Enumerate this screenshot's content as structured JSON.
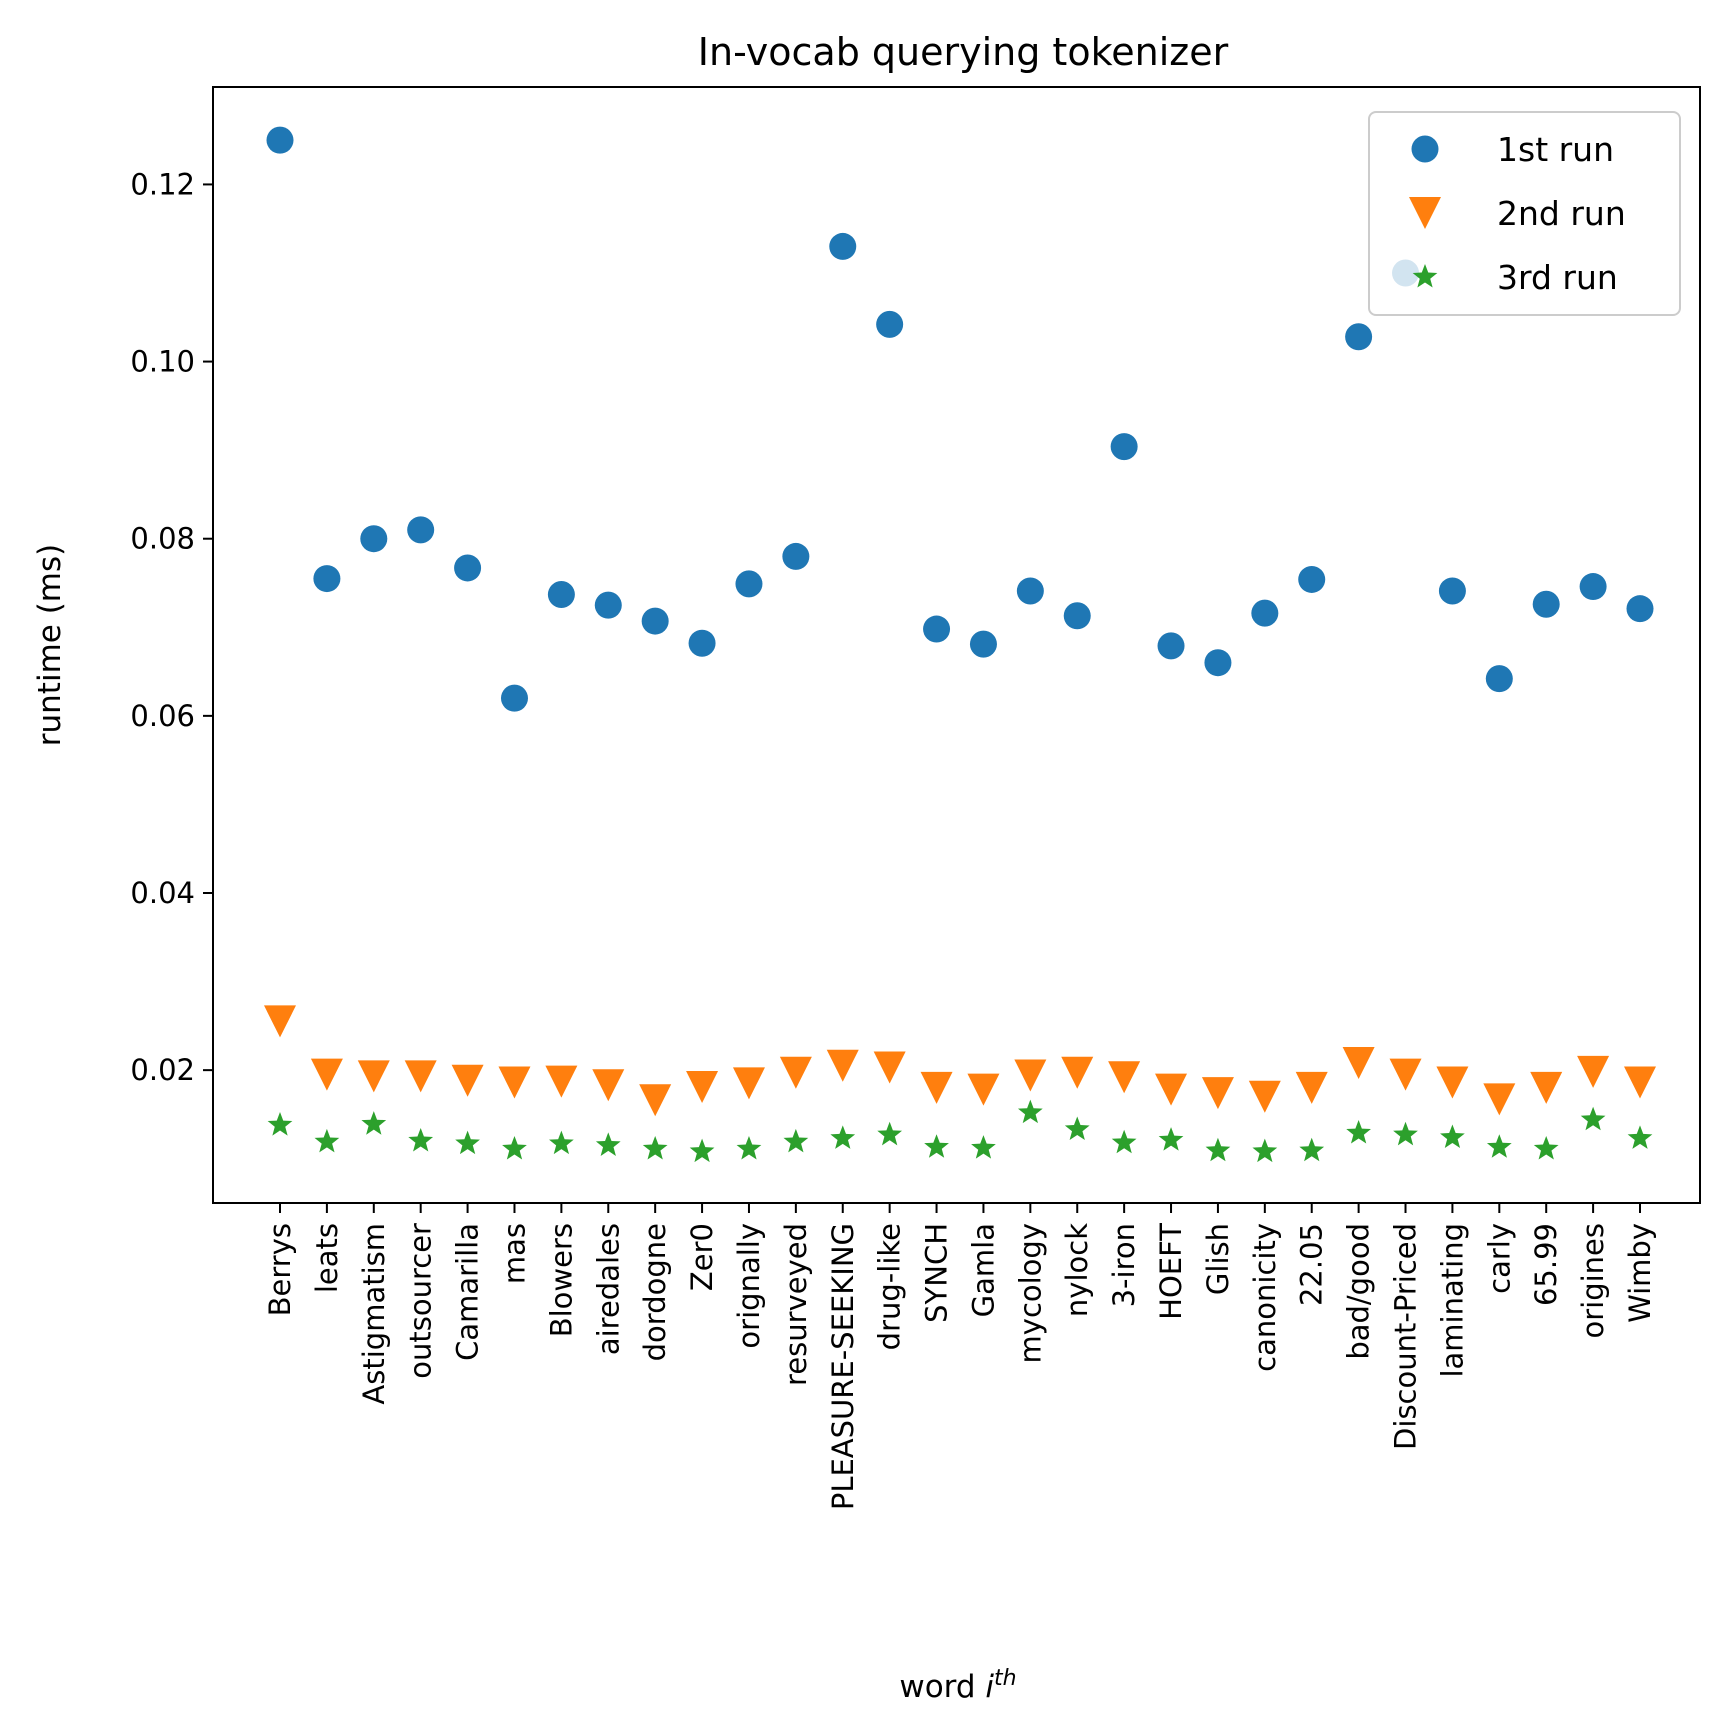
{
  "chart_data": {
    "type": "scatter",
    "title": "In-vocab querying tokenizer",
    "xlabel": "word",
    "xlabel_sup": "th",
    "xlabel_italic": "i",
    "ylabel": "runtime (ms)",
    "ylim": [
      0.005,
      0.131
    ],
    "yticks": [
      0.02,
      0.04,
      0.06,
      0.08,
      0.1,
      0.12
    ],
    "ytick_labels": [
      "0.02",
      "0.04",
      "0.06",
      "0.08",
      "0.10",
      "0.12"
    ],
    "grid": false,
    "legend_position": "top-right",
    "categories": [
      "Berrys",
      "leats",
      "Astigmatism",
      "outsourcer",
      "Camarilla",
      "mas",
      "Blowers",
      "airedales",
      "dordogne",
      "Zer0",
      "orignally",
      "resurveyed",
      "PLEASURE-SEEKING",
      "drug-like",
      "SYNCH",
      "Gamla",
      "mycology",
      "nylock",
      "3-iron",
      "HOEFT",
      "Glish",
      "canonicity",
      "22.05",
      "bad/good",
      "Discount-Priced",
      "laminating",
      "carly",
      "65.99",
      "origines",
      "Wimby"
    ],
    "series": [
      {
        "name": "1st run",
        "marker": "circle",
        "color": "#1f77b4",
        "values": [
          0.125,
          0.0755,
          0.08,
          0.081,
          0.0767,
          0.062,
          0.0737,
          0.0725,
          0.0707,
          0.0682,
          0.0749,
          0.078,
          0.113,
          0.1042,
          0.0698,
          0.0681,
          0.0741,
          0.0713,
          0.0904,
          0.0679,
          0.066,
          0.0716,
          0.0754,
          0.1028,
          0.11,
          0.0741,
          0.0642,
          0.0726,
          0.0746,
          0.0721
        ]
      },
      {
        "name": "2nd run",
        "marker": "triangle-down",
        "color": "#ff7f0e",
        "values": [
          0.0255,
          0.0195,
          0.0193,
          0.0193,
          0.0188,
          0.0186,
          0.0187,
          0.0183,
          0.0166,
          0.0181,
          0.0185,
          0.0197,
          0.0205,
          0.0203,
          0.018,
          0.0178,
          0.0194,
          0.0197,
          0.0192,
          0.0178,
          0.0174,
          0.017,
          0.018,
          0.0208,
          0.0195,
          0.0186,
          0.0167,
          0.018,
          0.0198,
          0.0186
        ]
      },
      {
        "name": "3rd run",
        "marker": "star",
        "color": "#2ca02c",
        "values": [
          0.0138,
          0.0119,
          0.0139,
          0.012,
          0.0117,
          0.0111,
          0.0117,
          0.0115,
          0.0111,
          0.0108,
          0.0111,
          0.0119,
          0.0123,
          0.0127,
          0.0113,
          0.0112,
          0.0152,
          0.0133,
          0.0118,
          0.0121,
          0.0109,
          0.0108,
          0.0109,
          0.0129,
          0.0127,
          0.0124,
          0.0113,
          0.0111,
          0.0144,
          0.0123
        ]
      }
    ]
  }
}
